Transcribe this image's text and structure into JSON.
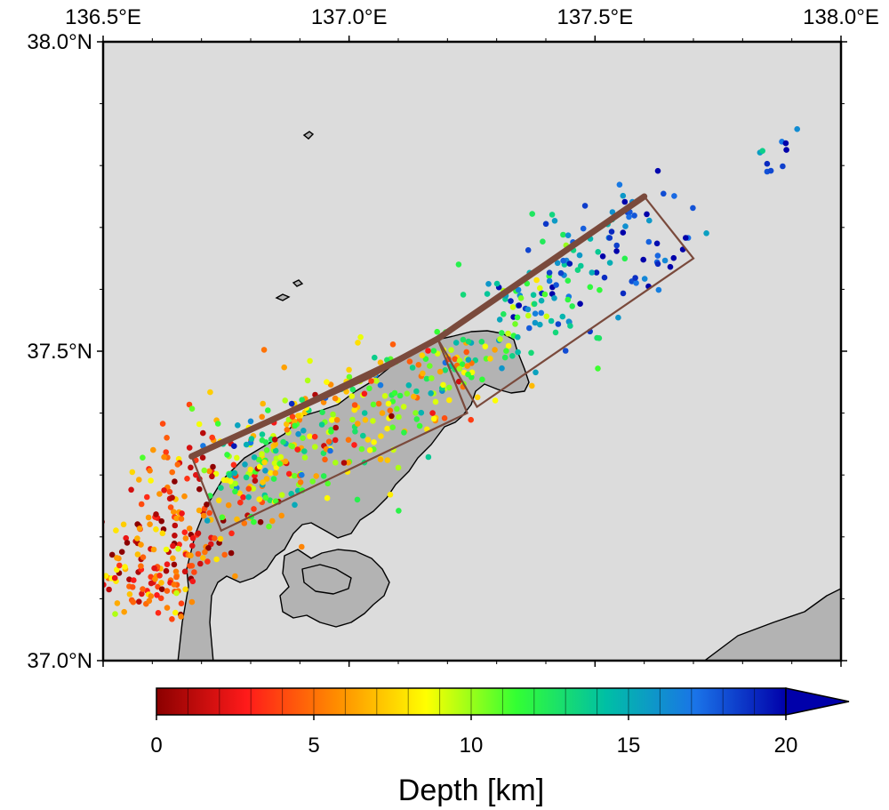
{
  "map": {
    "lon_range": [
      136.5,
      138.0
    ],
    "lat_range": [
      37.0,
      38.0
    ],
    "x_ticks": [
      {
        "value": 136.5,
        "label": "136.5°E"
      },
      {
        "value": 137.0,
        "label": "137.0°E"
      },
      {
        "value": 137.5,
        "label": "137.5°E"
      },
      {
        "value": 138.0,
        "label": "138.0°E"
      }
    ],
    "y_ticks": [
      {
        "value": 38.0,
        "label": "38.0°N"
      },
      {
        "value": 37.5,
        "label": "37.5°N"
      },
      {
        "value": 37.0,
        "label": "37.0°N"
      }
    ],
    "colors": {
      "sea": "#dcdcdc",
      "land": "#b3b3b3",
      "coast": "#000000",
      "fault_trace": "#7a4a3c",
      "fault_box": "#7a4a3c"
    }
  },
  "colorbar": {
    "title": "Depth [km]",
    "range": [
      0,
      20
    ],
    "ticks": [
      {
        "value": 0,
        "label": "0"
      },
      {
        "value": 5,
        "label": "5"
      },
      {
        "value": 10,
        "label": "10"
      },
      {
        "value": 15,
        "label": "15"
      },
      {
        "value": 20,
        "label": "20"
      }
    ],
    "palette": [
      "#8b0000",
      "#ff1a1a",
      "#ff8c00",
      "#ffff00",
      "#33ff33",
      "#00bfa5",
      "#1a73e8",
      "#0000aa"
    ]
  },
  "chart_data": {
    "type": "scatter",
    "xlabel": "",
    "ylabel": "",
    "color_label": "Depth [km]",
    "clusters": [
      {
        "lon": 136.62,
        "lat": 37.17,
        "spread_lon": 0.06,
        "spread_lat": 0.05,
        "depth": 3,
        "depth_spread": 2.5,
        "count": 90
      },
      {
        "lon": 136.66,
        "lat": 37.25,
        "spread_lon": 0.05,
        "spread_lat": 0.05,
        "depth": 4,
        "depth_spread": 2.5,
        "count": 70
      },
      {
        "lon": 136.58,
        "lat": 37.12,
        "spread_lon": 0.05,
        "spread_lat": 0.03,
        "depth": 6,
        "depth_spread": 2,
        "count": 40
      },
      {
        "lon": 136.78,
        "lat": 37.3,
        "spread_lon": 0.07,
        "spread_lat": 0.05,
        "depth": 9,
        "depth_spread": 4,
        "count": 120
      },
      {
        "lon": 136.92,
        "lat": 37.36,
        "spread_lon": 0.08,
        "spread_lat": 0.05,
        "depth": 9,
        "depth_spread": 4,
        "count": 120
      },
      {
        "lon": 137.07,
        "lat": 37.43,
        "spread_lon": 0.07,
        "spread_lat": 0.04,
        "depth": 9,
        "depth_spread": 3.5,
        "count": 90
      },
      {
        "lon": 137.22,
        "lat": 37.48,
        "spread_lon": 0.05,
        "spread_lat": 0.03,
        "depth": 10,
        "depth_spread": 3,
        "count": 60
      },
      {
        "lon": 137.35,
        "lat": 37.55,
        "spread_lon": 0.05,
        "spread_lat": 0.04,
        "depth": 13,
        "depth_spread": 3,
        "count": 55
      },
      {
        "lon": 137.45,
        "lat": 37.62,
        "spread_lon": 0.06,
        "spread_lat": 0.05,
        "depth": 15,
        "depth_spread": 3,
        "count": 55
      },
      {
        "lon": 137.58,
        "lat": 37.68,
        "spread_lon": 0.06,
        "spread_lat": 0.05,
        "depth": 18,
        "depth_spread": 2.5,
        "count": 50
      },
      {
        "lon": 137.86,
        "lat": 37.81,
        "spread_lon": 0.03,
        "spread_lat": 0.03,
        "depth": 17,
        "depth_spread": 3,
        "count": 10
      }
    ],
    "faults": {
      "trace": [
        [
          136.68,
          37.33
        ],
        [
          137.04,
          37.46
        ],
        [
          137.18,
          37.52
        ],
        [
          137.6,
          37.75
        ]
      ],
      "boxes": [
        [
          [
            136.68,
            37.33
          ],
          [
            137.18,
            37.52
          ],
          [
            137.24,
            37.4
          ],
          [
            136.74,
            37.21
          ]
        ],
        [
          [
            137.18,
            37.52
          ],
          [
            137.6,
            37.75
          ],
          [
            137.7,
            37.65
          ],
          [
            137.26,
            37.41
          ]
        ]
      ]
    }
  }
}
